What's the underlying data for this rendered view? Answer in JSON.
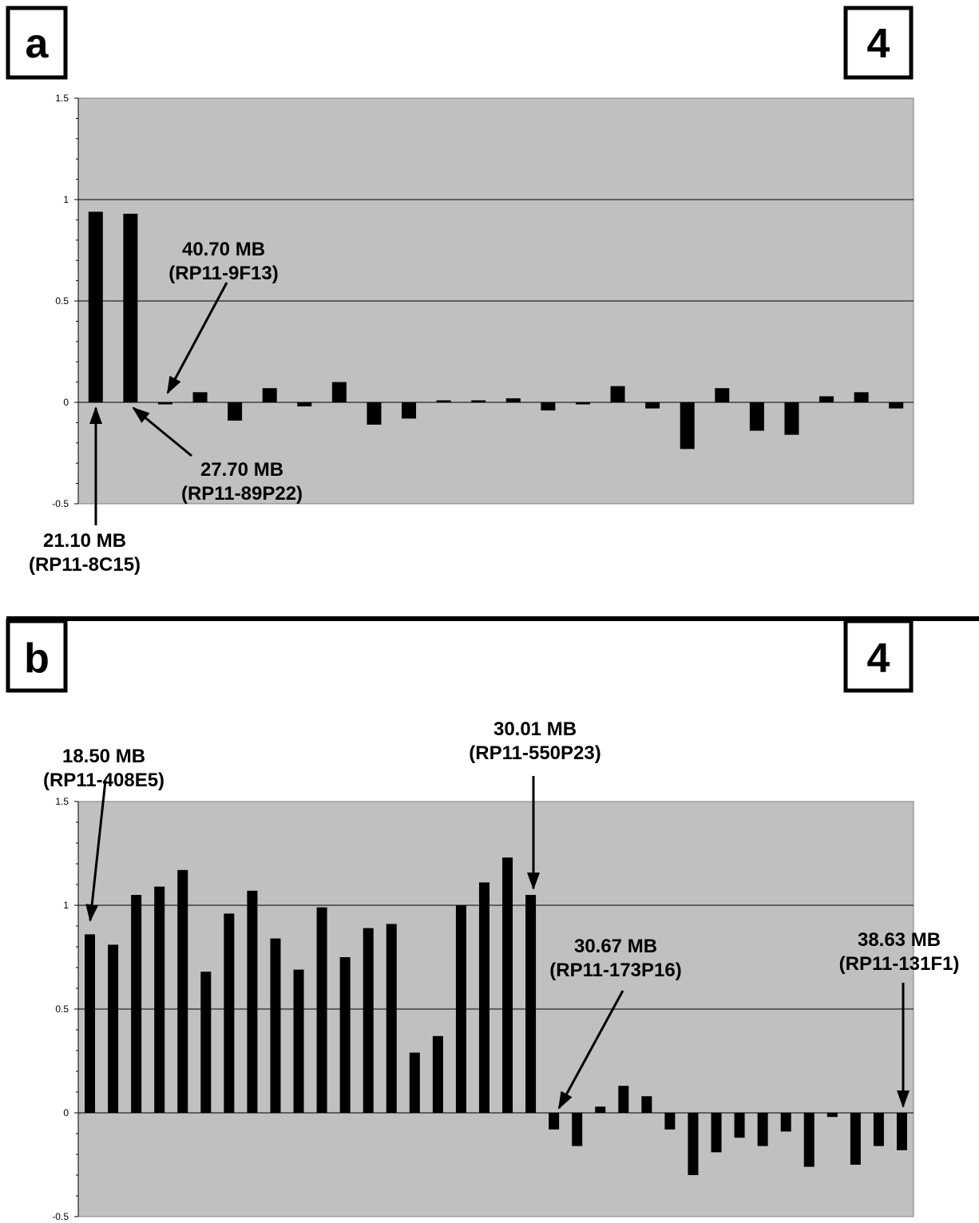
{
  "panels": [
    {
      "letter": "a",
      "number": "4"
    },
    {
      "letter": "b",
      "number": "4"
    }
  ],
  "chart_data": [
    {
      "type": "bar",
      "ylim": [
        -0.5,
        1.5
      ],
      "yticks": [
        "1.5",
        "1",
        "0.5",
        "0",
        "-0.5"
      ],
      "grid": true,
      "values": [
        0.94,
        0.93,
        -0.01,
        0.05,
        -0.09,
        0.07,
        -0.02,
        0.1,
        -0.11,
        -0.08,
        0.01,
        0.01,
        0.02,
        -0.04,
        -0.01,
        0.08,
        -0.03,
        -0.23,
        0.07,
        -0.14,
        -0.16,
        0.03,
        0.05,
        -0.03
      ],
      "annotations": [
        {
          "line1": "21.10 MB",
          "line2": "(RP11-8C15)",
          "bar": 0
        },
        {
          "line1": "27.70 MB",
          "line2": "(RP11-89P22)",
          "bar": 1
        },
        {
          "line1": "40.70 MB",
          "line2": "(RP11-9F13)",
          "bar": 2
        }
      ]
    },
    {
      "type": "bar",
      "ylim": [
        -0.5,
        1.5
      ],
      "yticks": [
        "1.5",
        "1",
        "0.5",
        "0",
        "-0.5"
      ],
      "grid": true,
      "values": [
        0.86,
        0.81,
        1.05,
        1.09,
        1.17,
        0.68,
        0.96,
        1.07,
        0.84,
        0.69,
        0.99,
        0.75,
        0.89,
        0.91,
        0.29,
        0.37,
        1.0,
        1.11,
        1.23,
        1.05,
        -0.08,
        -0.16,
        0.03,
        0.13,
        0.08,
        -0.08,
        -0.3,
        -0.19,
        -0.12,
        -0.16,
        -0.09,
        -0.26,
        -0.02,
        -0.25,
        -0.16,
        -0.18
      ],
      "annotations": [
        {
          "line1": "18.50 MB",
          "line2": "(RP11-408E5)",
          "bar": 0
        },
        {
          "line1": "30.01 MB",
          "line2": "(RP11-550P23)",
          "bar": 19
        },
        {
          "line1": "30.67 MB",
          "line2": "(RP11-173P16)",
          "bar": 20
        },
        {
          "line1": "38.63 MB",
          "line2": "(RP11-131F1)",
          "bar": 35
        }
      ]
    }
  ]
}
